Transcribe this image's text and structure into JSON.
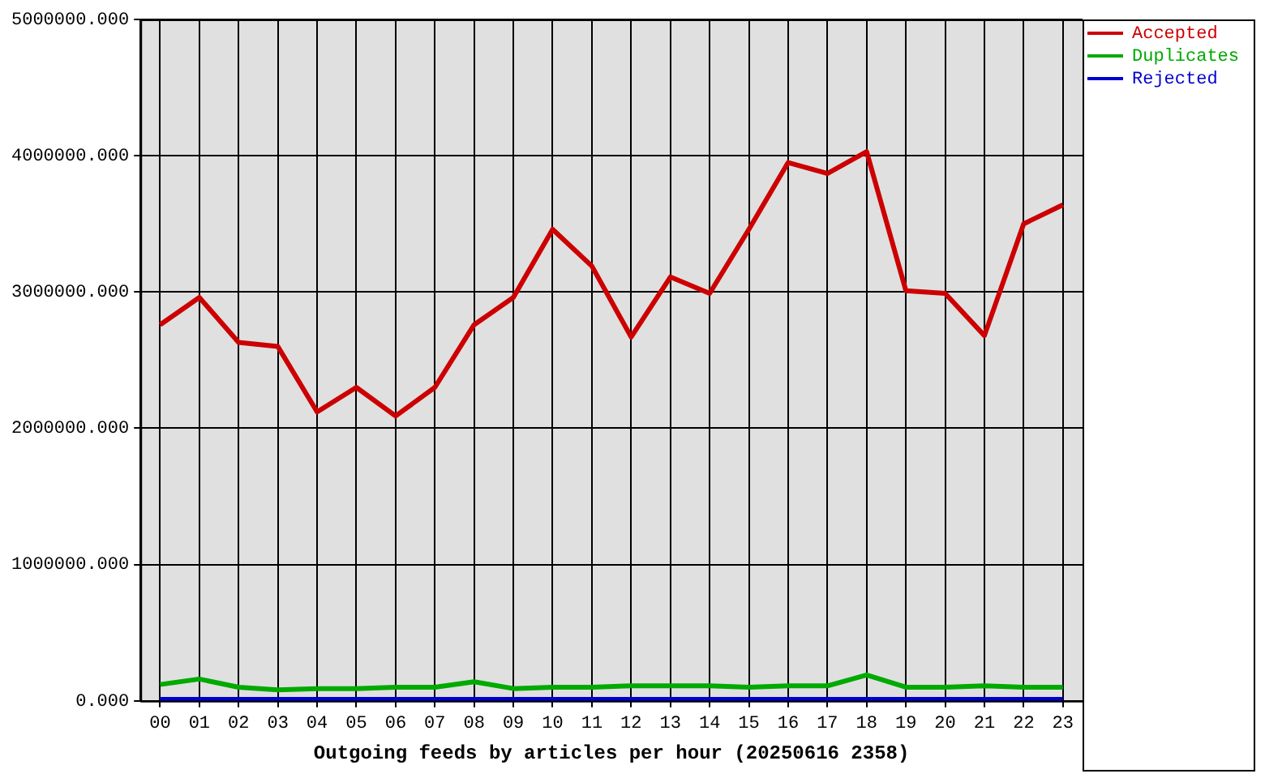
{
  "chart_data": {
    "type": "line",
    "xlabel": "Outgoing feeds by articles per hour (20250616 2358)",
    "categories": [
      "00",
      "01",
      "02",
      "03",
      "04",
      "05",
      "06",
      "07",
      "08",
      "09",
      "10",
      "11",
      "12",
      "13",
      "14",
      "15",
      "16",
      "17",
      "18",
      "19",
      "20",
      "21",
      "22",
      "23"
    ],
    "series": [
      {
        "name": "Accepted",
        "color": "#cc0000",
        "values": [
          2760000,
          2960000,
          2630000,
          2600000,
          2120000,
          2300000,
          2090000,
          2300000,
          2760000,
          2960000,
          3460000,
          3190000,
          2670000,
          3110000,
          2990000,
          3460000,
          3950000,
          3870000,
          4030000,
          3010000,
          2990000,
          2680000,
          3500000,
          3640000
        ]
      },
      {
        "name": "Duplicates",
        "color": "#00aa00",
        "values": [
          120000,
          160000,
          100000,
          80000,
          90000,
          90000,
          100000,
          100000,
          140000,
          90000,
          100000,
          100000,
          110000,
          110000,
          110000,
          100000,
          110000,
          110000,
          190000,
          100000,
          100000,
          110000,
          100000,
          100000
        ]
      },
      {
        "name": "Rejected",
        "color": "#0000cc",
        "values": [
          10000,
          10000,
          10000,
          10000,
          10000,
          10000,
          10000,
          10000,
          10000,
          10000,
          10000,
          10000,
          10000,
          10000,
          10000,
          10000,
          10000,
          10000,
          10000,
          10000,
          10000,
          10000,
          10000,
          10000
        ]
      }
    ],
    "ylim": [
      0,
      5000000
    ],
    "yticks": [
      {
        "value": 0,
        "label": "0.000"
      },
      {
        "value": 1000000,
        "label": "1000000.000"
      },
      {
        "value": 2000000,
        "label": "2000000.000"
      },
      {
        "value": 3000000,
        "label": "3000000.000"
      },
      {
        "value": 4000000,
        "label": "4000000.000"
      },
      {
        "value": 5000000,
        "label": "5000000.000"
      }
    ],
    "grid": true,
    "legend": "top right",
    "marker": "none",
    "line_style": "solid"
  }
}
